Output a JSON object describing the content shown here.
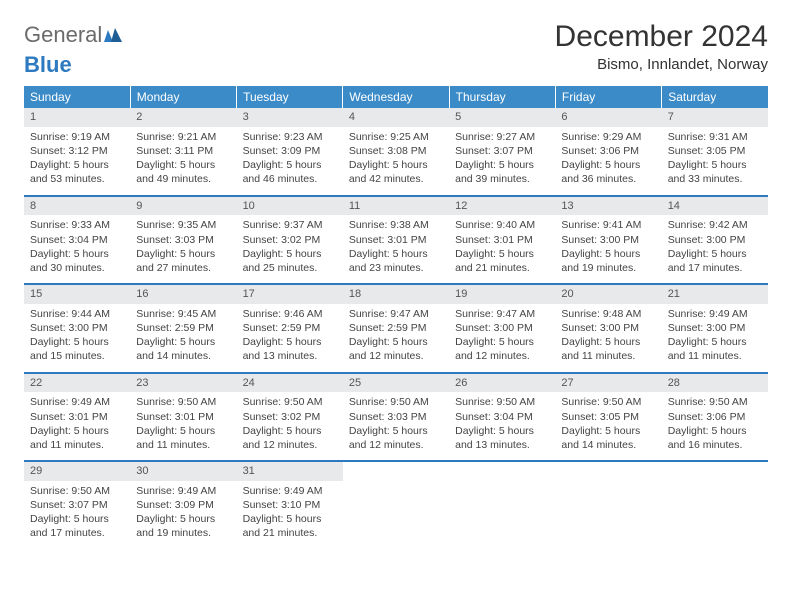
{
  "logo": {
    "line1": "General",
    "line2": "Blue"
  },
  "title": "December 2024",
  "subtitle": "Bismo, Innlandet, Norway",
  "colors": {
    "header_bg": "#3b8bc9",
    "rule": "#2d7ac0",
    "daynum_bg": "#e7e9eb",
    "logo_gray": "#6b6b6b",
    "logo_blue": "#2d7ac0"
  },
  "day_headers": [
    "Sunday",
    "Monday",
    "Tuesday",
    "Wednesday",
    "Thursday",
    "Friday",
    "Saturday"
  ],
  "weeks": [
    [
      {
        "n": "1",
        "sr": "Sunrise: 9:19 AM",
        "ss": "Sunset: 3:12 PM",
        "dl": "Daylight: 5 hours and 53 minutes."
      },
      {
        "n": "2",
        "sr": "Sunrise: 9:21 AM",
        "ss": "Sunset: 3:11 PM",
        "dl": "Daylight: 5 hours and 49 minutes."
      },
      {
        "n": "3",
        "sr": "Sunrise: 9:23 AM",
        "ss": "Sunset: 3:09 PM",
        "dl": "Daylight: 5 hours and 46 minutes."
      },
      {
        "n": "4",
        "sr": "Sunrise: 9:25 AM",
        "ss": "Sunset: 3:08 PM",
        "dl": "Daylight: 5 hours and 42 minutes."
      },
      {
        "n": "5",
        "sr": "Sunrise: 9:27 AM",
        "ss": "Sunset: 3:07 PM",
        "dl": "Daylight: 5 hours and 39 minutes."
      },
      {
        "n": "6",
        "sr": "Sunrise: 9:29 AM",
        "ss": "Sunset: 3:06 PM",
        "dl": "Daylight: 5 hours and 36 minutes."
      },
      {
        "n": "7",
        "sr": "Sunrise: 9:31 AM",
        "ss": "Sunset: 3:05 PM",
        "dl": "Daylight: 5 hours and 33 minutes."
      }
    ],
    [
      {
        "n": "8",
        "sr": "Sunrise: 9:33 AM",
        "ss": "Sunset: 3:04 PM",
        "dl": "Daylight: 5 hours and 30 minutes."
      },
      {
        "n": "9",
        "sr": "Sunrise: 9:35 AM",
        "ss": "Sunset: 3:03 PM",
        "dl": "Daylight: 5 hours and 27 minutes."
      },
      {
        "n": "10",
        "sr": "Sunrise: 9:37 AM",
        "ss": "Sunset: 3:02 PM",
        "dl": "Daylight: 5 hours and 25 minutes."
      },
      {
        "n": "11",
        "sr": "Sunrise: 9:38 AM",
        "ss": "Sunset: 3:01 PM",
        "dl": "Daylight: 5 hours and 23 minutes."
      },
      {
        "n": "12",
        "sr": "Sunrise: 9:40 AM",
        "ss": "Sunset: 3:01 PM",
        "dl": "Daylight: 5 hours and 21 minutes."
      },
      {
        "n": "13",
        "sr": "Sunrise: 9:41 AM",
        "ss": "Sunset: 3:00 PM",
        "dl": "Daylight: 5 hours and 19 minutes."
      },
      {
        "n": "14",
        "sr": "Sunrise: 9:42 AM",
        "ss": "Sunset: 3:00 PM",
        "dl": "Daylight: 5 hours and 17 minutes."
      }
    ],
    [
      {
        "n": "15",
        "sr": "Sunrise: 9:44 AM",
        "ss": "Sunset: 3:00 PM",
        "dl": "Daylight: 5 hours and 15 minutes."
      },
      {
        "n": "16",
        "sr": "Sunrise: 9:45 AM",
        "ss": "Sunset: 2:59 PM",
        "dl": "Daylight: 5 hours and 14 minutes."
      },
      {
        "n": "17",
        "sr": "Sunrise: 9:46 AM",
        "ss": "Sunset: 2:59 PM",
        "dl": "Daylight: 5 hours and 13 minutes."
      },
      {
        "n": "18",
        "sr": "Sunrise: 9:47 AM",
        "ss": "Sunset: 2:59 PM",
        "dl": "Daylight: 5 hours and 12 minutes."
      },
      {
        "n": "19",
        "sr": "Sunrise: 9:47 AM",
        "ss": "Sunset: 3:00 PM",
        "dl": "Daylight: 5 hours and 12 minutes."
      },
      {
        "n": "20",
        "sr": "Sunrise: 9:48 AM",
        "ss": "Sunset: 3:00 PM",
        "dl": "Daylight: 5 hours and 11 minutes."
      },
      {
        "n": "21",
        "sr": "Sunrise: 9:49 AM",
        "ss": "Sunset: 3:00 PM",
        "dl": "Daylight: 5 hours and 11 minutes."
      }
    ],
    [
      {
        "n": "22",
        "sr": "Sunrise: 9:49 AM",
        "ss": "Sunset: 3:01 PM",
        "dl": "Daylight: 5 hours and 11 minutes."
      },
      {
        "n": "23",
        "sr": "Sunrise: 9:50 AM",
        "ss": "Sunset: 3:01 PM",
        "dl": "Daylight: 5 hours and 11 minutes."
      },
      {
        "n": "24",
        "sr": "Sunrise: 9:50 AM",
        "ss": "Sunset: 3:02 PM",
        "dl": "Daylight: 5 hours and 12 minutes."
      },
      {
        "n": "25",
        "sr": "Sunrise: 9:50 AM",
        "ss": "Sunset: 3:03 PM",
        "dl": "Daylight: 5 hours and 12 minutes."
      },
      {
        "n": "26",
        "sr": "Sunrise: 9:50 AM",
        "ss": "Sunset: 3:04 PM",
        "dl": "Daylight: 5 hours and 13 minutes."
      },
      {
        "n": "27",
        "sr": "Sunrise: 9:50 AM",
        "ss": "Sunset: 3:05 PM",
        "dl": "Daylight: 5 hours and 14 minutes."
      },
      {
        "n": "28",
        "sr": "Sunrise: 9:50 AM",
        "ss": "Sunset: 3:06 PM",
        "dl": "Daylight: 5 hours and 16 minutes."
      }
    ],
    [
      {
        "n": "29",
        "sr": "Sunrise: 9:50 AM",
        "ss": "Sunset: 3:07 PM",
        "dl": "Daylight: 5 hours and 17 minutes."
      },
      {
        "n": "30",
        "sr": "Sunrise: 9:49 AM",
        "ss": "Sunset: 3:09 PM",
        "dl": "Daylight: 5 hours and 19 minutes."
      },
      {
        "n": "31",
        "sr": "Sunrise: 9:49 AM",
        "ss": "Sunset: 3:10 PM",
        "dl": "Daylight: 5 hours and 21 minutes."
      },
      null,
      null,
      null,
      null
    ]
  ]
}
